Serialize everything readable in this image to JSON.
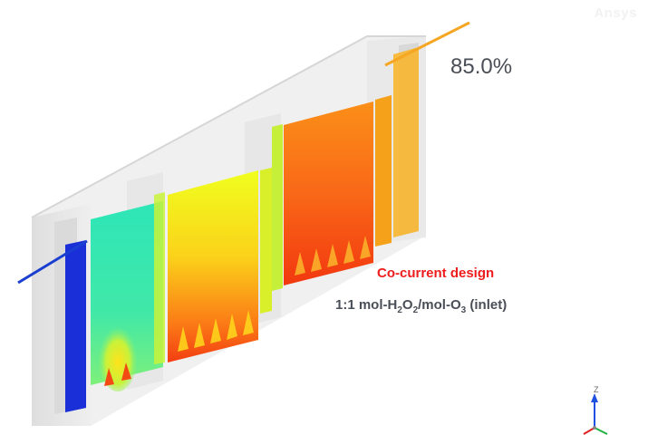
{
  "watermark": "Ansys",
  "result": {
    "percent": "85.0%"
  },
  "caption": {
    "title": "Co-current design",
    "ratio_prefix": "1:1 mol-H",
    "ratio_sub1": "2",
    "ratio_mid1": "O",
    "ratio_sub2": "2",
    "ratio_mid2": "/mol-O",
    "ratio_sub3": "3",
    "ratio_suffix": " (inlet)"
  },
  "axis": {
    "z_label": "Z"
  },
  "colors": {
    "title_red": "#ee1c1c",
    "text_gray": "#4a4f57",
    "pipe_blue": "#1a3fd0",
    "pipe_orange": "#f5a623"
  }
}
